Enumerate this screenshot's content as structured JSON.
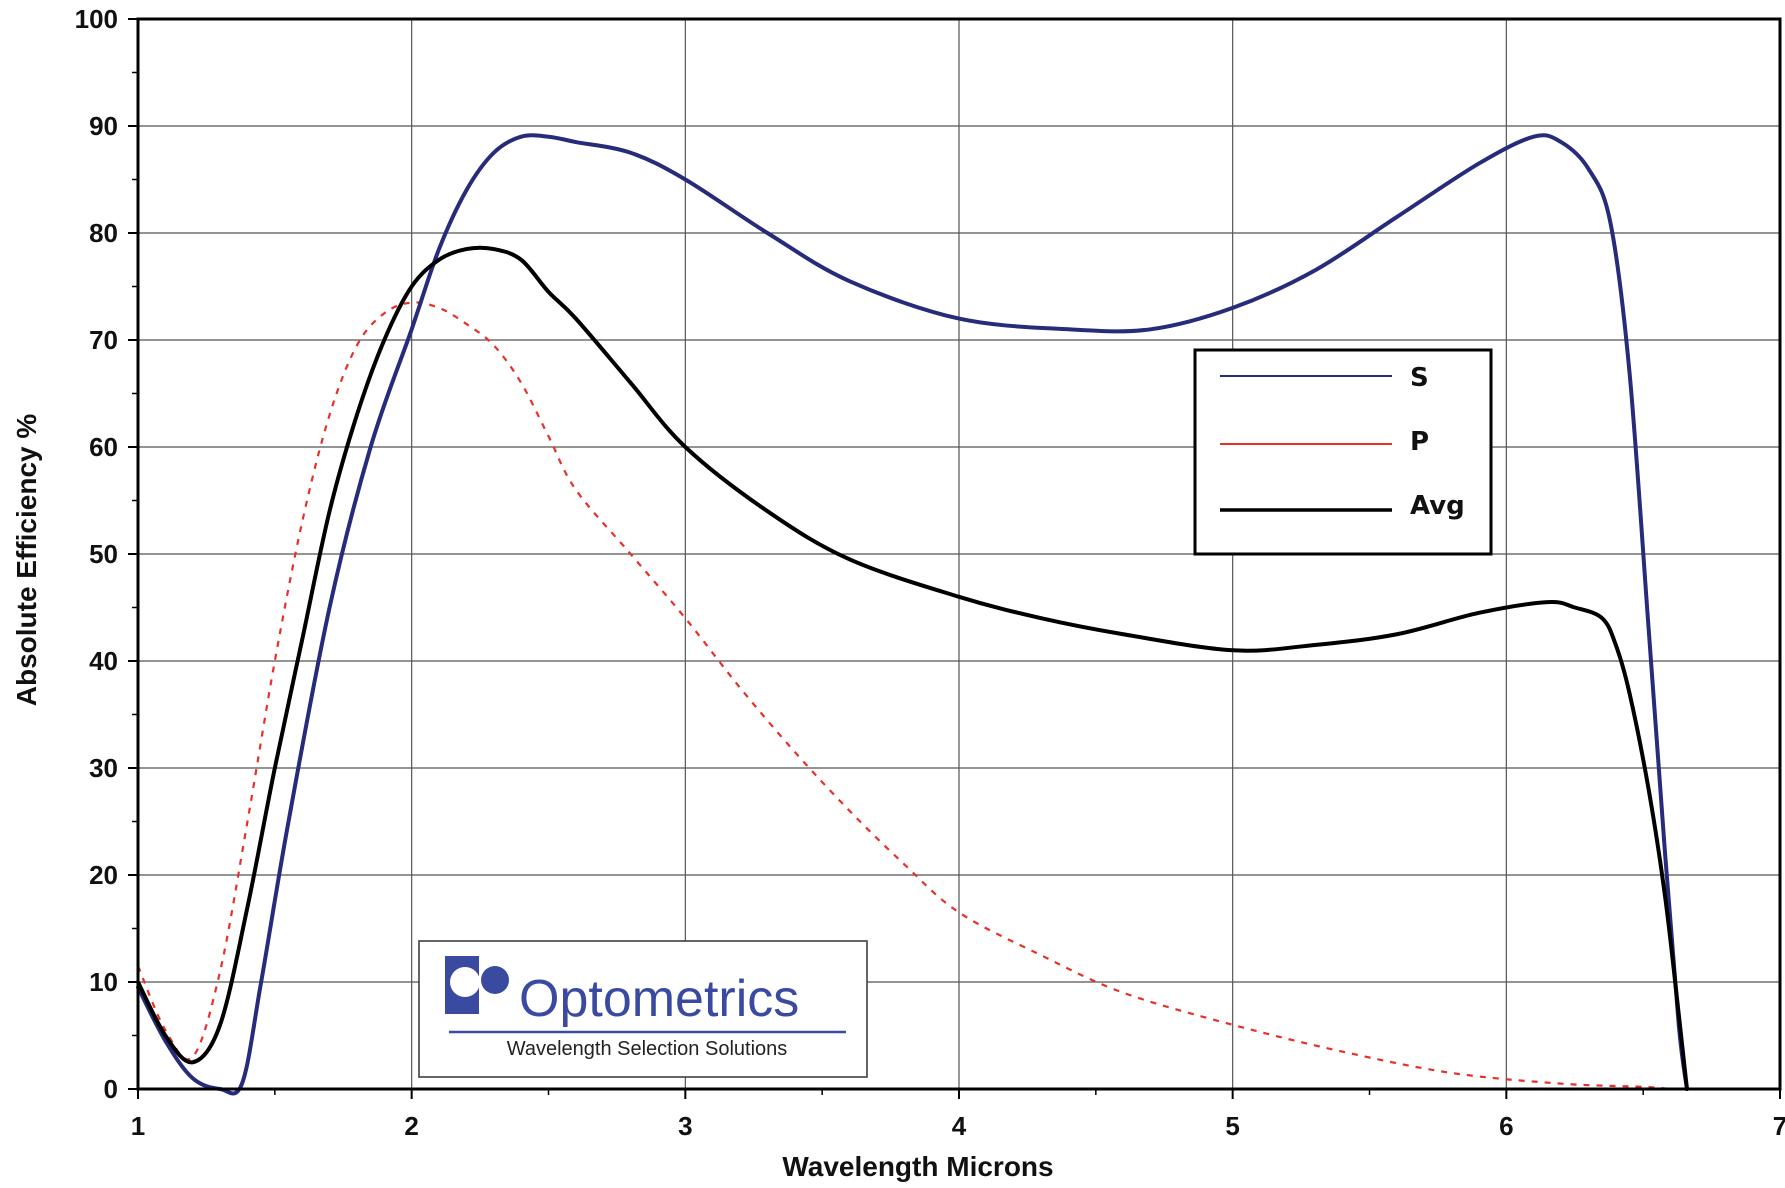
{
  "chart_data": {
    "type": "line",
    "title": "",
    "xlabel": "Wavelength Microns",
    "ylabel": "Absolute Efficiency %",
    "xlim": [
      1,
      7
    ],
    "ylim": [
      0,
      100
    ],
    "x_ticks": [
      "1",
      "2",
      "3",
      "4",
      "5",
      "6",
      "7"
    ],
    "y_ticks": [
      "0",
      "10",
      "20",
      "30",
      "40",
      "50",
      "60",
      "70",
      "80",
      "90",
      "100"
    ],
    "grid": true,
    "legend_position": "upper-right",
    "series": [
      {
        "name": "S",
        "color": "#262b7a",
        "style": "solid",
        "x": [
          1.0,
          1.1,
          1.2,
          1.3,
          1.38,
          1.45,
          1.55,
          1.7,
          1.85,
          2.0,
          2.1,
          2.2,
          2.3,
          2.4,
          2.5,
          2.6,
          2.8,
          3.0,
          3.3,
          3.6,
          4.0,
          4.4,
          4.7,
          5.0,
          5.3,
          5.6,
          5.9,
          6.1,
          6.2,
          6.3,
          6.38,
          6.45,
          6.52,
          6.58,
          6.63,
          6.66
        ],
        "y": [
          9.5,
          4.5,
          1.0,
          0.0,
          0.5,
          10,
          25,
          45,
          60,
          71,
          78.5,
          84,
          87.5,
          89,
          89,
          88.5,
          87.5,
          85,
          80,
          75.5,
          72,
          71,
          71,
          73,
          76.5,
          81.5,
          86.5,
          89,
          88.5,
          86,
          81,
          67,
          43,
          22,
          6,
          0
        ]
      },
      {
        "name": "P",
        "color": "#e8302a",
        "style": "dashed",
        "x": [
          1.0,
          1.1,
          1.2,
          1.3,
          1.4,
          1.5,
          1.6,
          1.7,
          1.8,
          1.9,
          2.0,
          2.1,
          2.2,
          2.3,
          2.4,
          2.5,
          2.6,
          2.8,
          3.0,
          3.2,
          3.4,
          3.6,
          3.8,
          4.0,
          4.3,
          4.6,
          5.0,
          5.4,
          5.8,
          6.2,
          6.5,
          6.6
        ],
        "y": [
          11.5,
          5.5,
          3.0,
          11,
          25,
          40,
          53,
          63,
          69.5,
          72.5,
          73.5,
          73,
          71.5,
          69.5,
          66,
          61,
          56,
          50,
          44,
          37.5,
          31.5,
          26,
          21,
          16.5,
          12.5,
          9,
          6,
          3.5,
          1.5,
          0.5,
          0.2,
          0
        ]
      },
      {
        "name": "Avg",
        "color": "#000000",
        "style": "solid",
        "x": [
          1.0,
          1.1,
          1.2,
          1.3,
          1.4,
          1.5,
          1.6,
          1.7,
          1.8,
          1.9,
          2.0,
          2.1,
          2.2,
          2.3,
          2.4,
          2.5,
          2.6,
          2.8,
          3.0,
          3.3,
          3.6,
          4.0,
          4.3,
          4.6,
          5.0,
          5.3,
          5.6,
          5.9,
          6.15,
          6.25,
          6.35,
          6.4,
          6.45,
          6.52,
          6.58,
          6.63,
          6.66
        ],
        "y": [
          10,
          5,
          2.5,
          6,
          17,
          30,
          42,
          54,
          63,
          70,
          75,
          77.5,
          78.5,
          78.5,
          77.5,
          74.5,
          72,
          66,
          60,
          54,
          49.5,
          46,
          44,
          42.5,
          41,
          41.5,
          42.5,
          44.5,
          45.5,
          45,
          44,
          41.5,
          37,
          28,
          18,
          7,
          0
        ]
      }
    ]
  },
  "logo": {
    "name": "Optometrics",
    "tagline": "Wavelength Selection Solutions",
    "color": "#3a4aa0"
  }
}
